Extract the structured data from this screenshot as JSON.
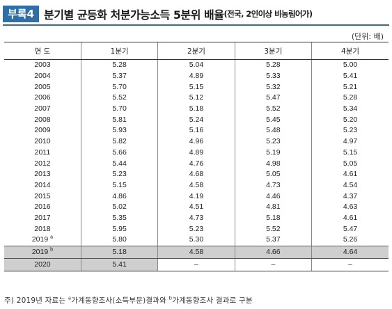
{
  "title": {
    "badge": "부록4",
    "main": "분기별 균등화 처분가능소득 5분위 배율",
    "sub": "(전국, 2인이상 비농림어가)"
  },
  "unit": "(단위: 배)",
  "headers": [
    "연 도",
    "1분기",
    "2분기",
    "3분기",
    "4분기"
  ],
  "rows": [
    {
      "year": "2003",
      "q1": "5.28",
      "q2": "5.04",
      "q3": "5.28",
      "q4": "5.00"
    },
    {
      "year": "2004",
      "q1": "5.37",
      "q2": "4.89",
      "q3": "5.33",
      "q4": "5.41"
    },
    {
      "year": "2005",
      "q1": "5.70",
      "q2": "5.15",
      "q3": "5.32",
      "q4": "5.21"
    },
    {
      "year": "2006",
      "q1": "5.52",
      "q2": "5.12",
      "q3": "5.47",
      "q4": "5.28"
    },
    {
      "year": "2007",
      "q1": "5.70",
      "q2": "5.18",
      "q3": "5.52",
      "q4": "5.34"
    },
    {
      "year": "2008",
      "q1": "5.81",
      "q2": "5.24",
      "q3": "5.45",
      "q4": "5.20"
    },
    {
      "year": "2009",
      "q1": "5.93",
      "q2": "5.16",
      "q3": "5.48",
      "q4": "5.23"
    },
    {
      "year": "2010",
      "q1": "5.82",
      "q2": "4.96",
      "q3": "5.23",
      "q4": "4.97"
    },
    {
      "year": "2011",
      "q1": "5.66",
      "q2": "4.89",
      "q3": "5.19",
      "q4": "5.15"
    },
    {
      "year": "2012",
      "q1": "5.44",
      "q2": "4.76",
      "q3": "4.98",
      "q4": "5.05"
    },
    {
      "year": "2013",
      "q1": "5.23",
      "q2": "4.68",
      "q3": "5.05",
      "q4": "4.61"
    },
    {
      "year": "2014",
      "q1": "5.15",
      "q2": "4.58",
      "q3": "4.73",
      "q4": "4.54"
    },
    {
      "year": "2015",
      "q1": "4.86",
      "q2": "4.19",
      "q3": "4.46",
      "q4": "4.37"
    },
    {
      "year": "2016",
      "q1": "5.02",
      "q2": "4.51",
      "q3": "4.81",
      "q4": "4.63"
    },
    {
      "year": "2017",
      "q1": "5.35",
      "q2": "4.73",
      "q3": "5.18",
      "q4": "4.61"
    },
    {
      "year": "2018",
      "q1": "5.95",
      "q2": "5.23",
      "q3": "5.52",
      "q4": "5.47"
    },
    {
      "year": "2019",
      "sup": "a",
      "q1": "5.80",
      "q2": "5.30",
      "q3": "5.37",
      "q4": "5.26"
    }
  ],
  "alt_row": {
    "year": "2019",
    "sup": "b",
    "q1": "5.18",
    "q2": "4.58",
    "q3": "4.66",
    "q4": "4.64"
  },
  "final_row": {
    "year": "2020",
    "q1": "5.41",
    "q2": "–",
    "q3": "–",
    "q4": "–"
  },
  "note": {
    "prefix": "주) 2019년 자료는 ",
    "sup_a": "a",
    "part1": "가계동향조사(소득부문)결과와 ",
    "sup_b": "b",
    "part2": "가계동향조사 결과로 구분"
  }
}
